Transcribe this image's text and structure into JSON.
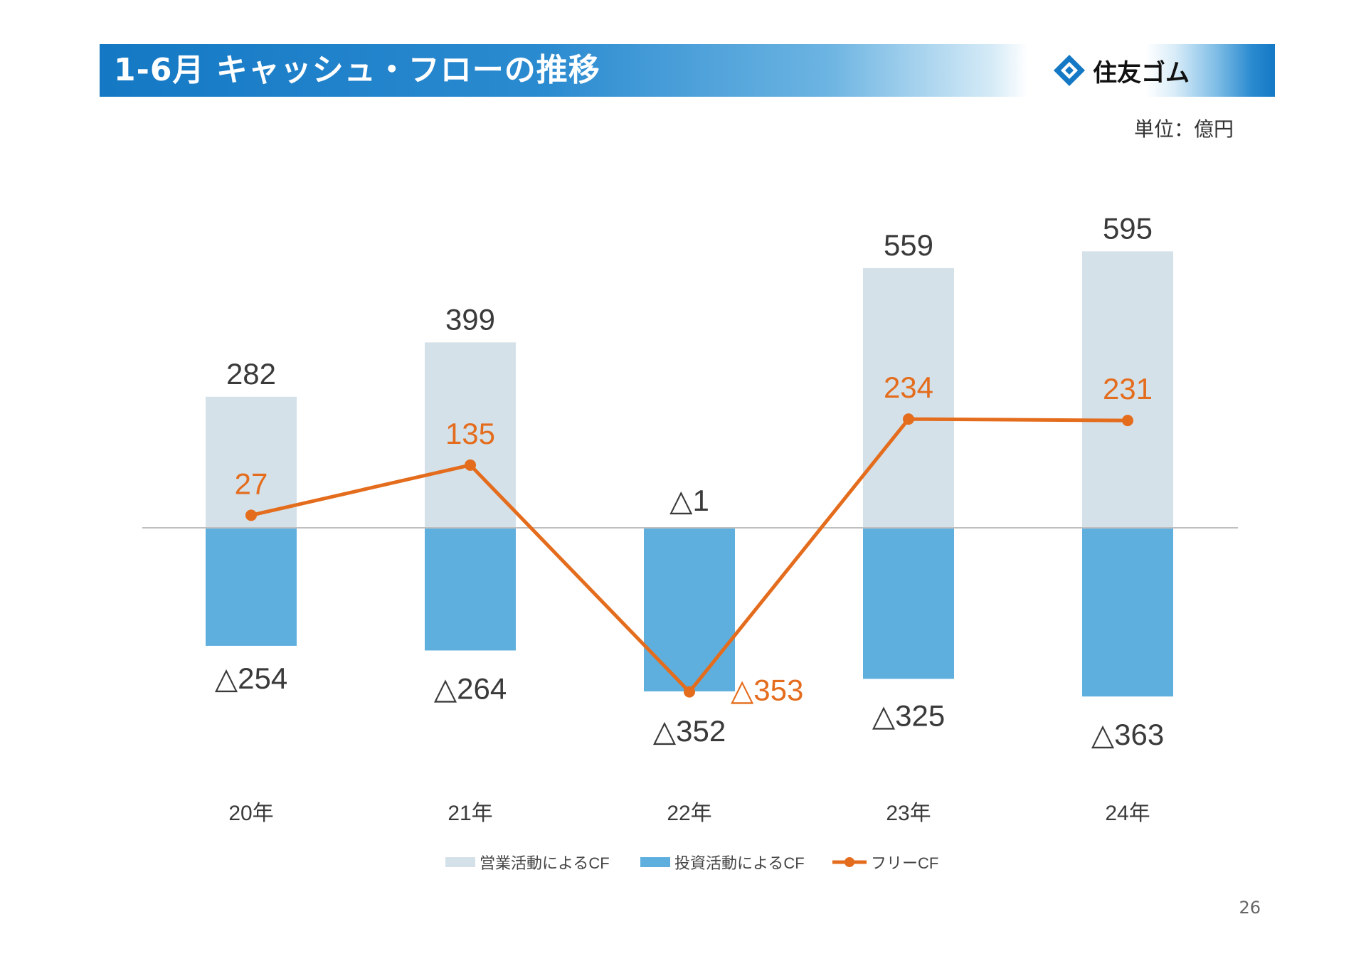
{
  "title": "1-6月 キャッシュ・フローの推移",
  "logo": {
    "text": "住友ゴム"
  },
  "unit_label": "単位：億円",
  "page_number": "26",
  "colors": {
    "title_blue": "#1478c4",
    "operating_cf": "#d5e1e8",
    "investing_cf": "#5eafde",
    "free_cf": "#e46c1d",
    "value_text": "#3a3a3a",
    "axis": "#bfbfbf"
  },
  "chart_data": {
    "type": "bar",
    "title": "1-6月 キャッシュ・フローの推移",
    "unit": "億円",
    "categories": [
      "20年",
      "21年",
      "22年",
      "23年",
      "24年"
    ],
    "ylim": [
      -400,
      650
    ],
    "series": [
      {
        "name": "営業活動によるCF",
        "kind": "bar",
        "values": [
          282,
          399,
          -1,
          559,
          595
        ],
        "labels": [
          "282",
          "399",
          "△1",
          "559",
          "595"
        ]
      },
      {
        "name": "投資活動によるCF",
        "kind": "bar",
        "values": [
          -254,
          -264,
          -352,
          -325,
          -363
        ],
        "labels": [
          "△254",
          "△264",
          "△352",
          "△325",
          "△363"
        ]
      },
      {
        "name": "フリーCF",
        "kind": "line",
        "values": [
          27,
          135,
          -353,
          234,
          231
        ],
        "labels": [
          "27",
          "135",
          "△353",
          "234",
          "231"
        ]
      }
    ],
    "legend": [
      "営業活動によるCF",
      "投資活動によるCF",
      "フリーCF"
    ],
    "legend_position": "bottom-center"
  }
}
